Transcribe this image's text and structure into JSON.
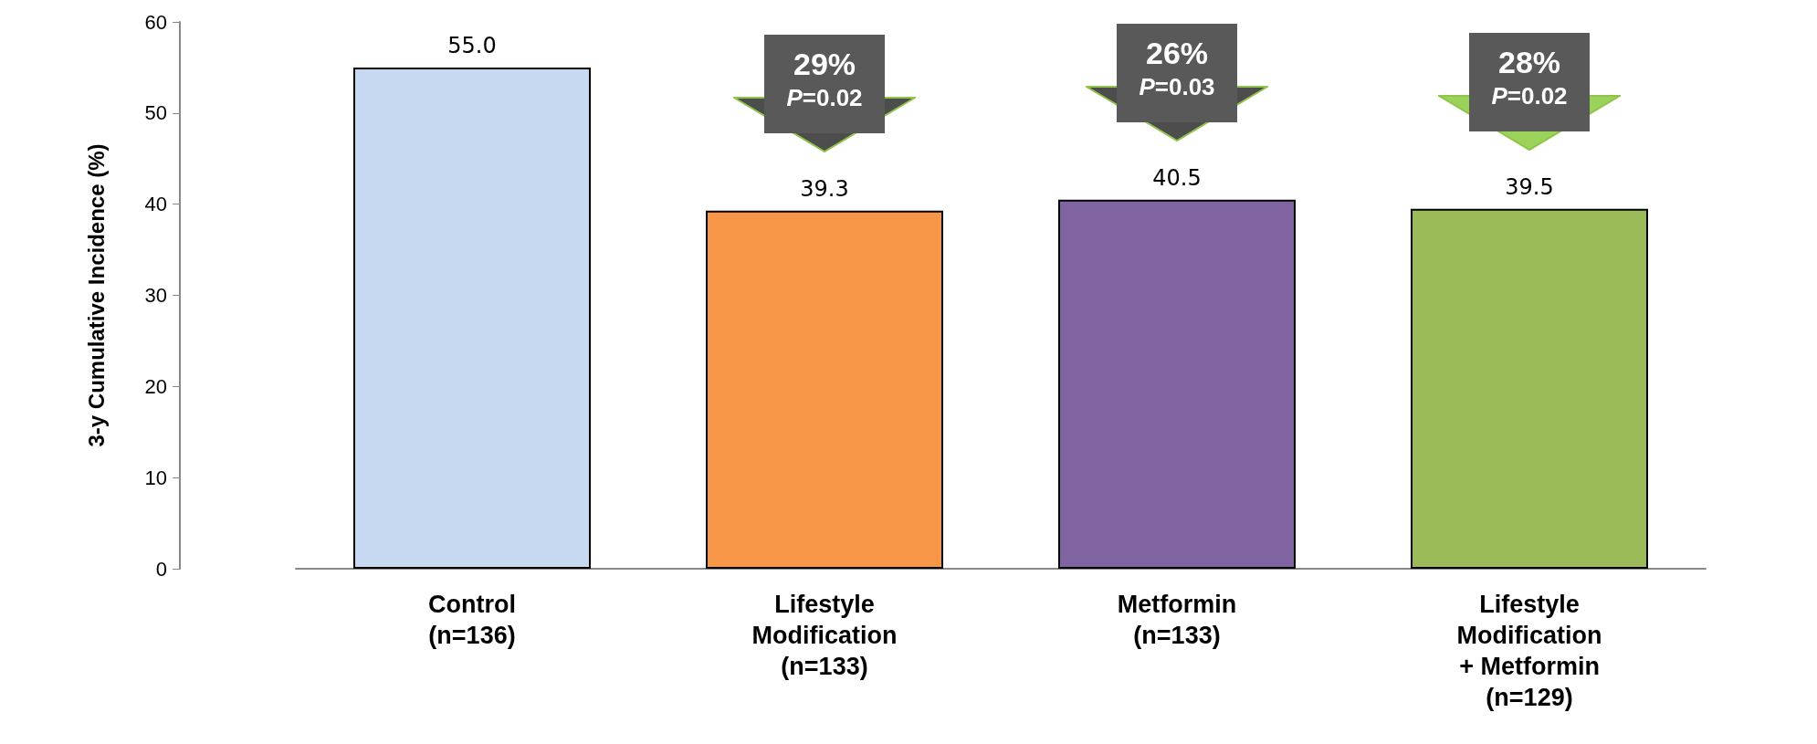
{
  "chart_data": {
    "type": "bar",
    "ylabel": "3-y Cumulative Incidence (%)",
    "categories": [
      "Control\n(n=136)",
      "Lifestyle\nModification\n(n=133)",
      "Metformin\n(n=133)",
      "Lifestyle\nModification\n+ Metformin\n(n=129)"
    ],
    "values": [
      55.0,
      39.3,
      40.5,
      39.5
    ],
    "colors": [
      "#c6d9f1",
      "#f79646",
      "#8064a2",
      "#9bbb59"
    ],
    "value_labels": [
      "55.0",
      "39.3",
      "40.5",
      "39.5"
    ],
    "ylim": [
      0,
      60
    ],
    "yticks": [
      0,
      10,
      20,
      30,
      40,
      50,
      60
    ],
    "grid": false,
    "annotations": [
      "29%\nP=0.02",
      "26%\nP=0.03",
      "28%\nP=0.02"
    ]
  }
}
